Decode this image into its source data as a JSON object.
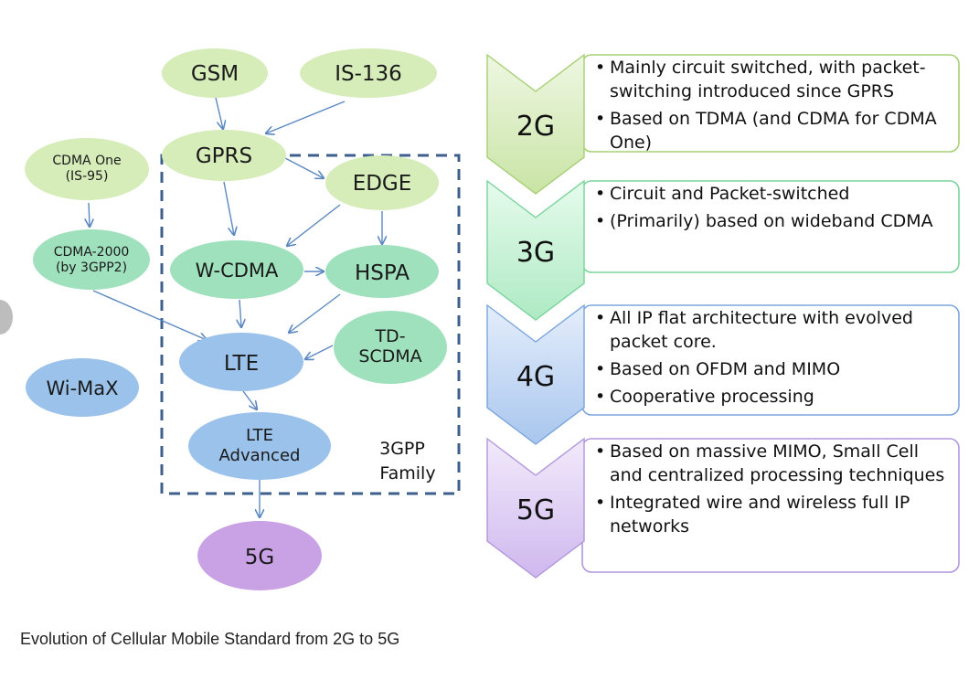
{
  "nodes": {
    "gsm": {
      "label": "GSM"
    },
    "is136": {
      "label": "IS-136"
    },
    "cdma_one": {
      "label_lines": [
        "CDMA One",
        "(IS-95)"
      ]
    },
    "gprs": {
      "label": "GPRS"
    },
    "edge": {
      "label": "EDGE"
    },
    "cdma2000": {
      "label_lines": [
        "CDMA-2000",
        "(by 3GPP2)"
      ]
    },
    "wcdma": {
      "label": "W-CDMA"
    },
    "hspa": {
      "label": "HSPA"
    },
    "td_scdma": {
      "label_lines": [
        "TD-",
        "SCDMA"
      ]
    },
    "lte": {
      "label": "LTE"
    },
    "wimax": {
      "label": "Wi-MaX"
    },
    "lte_advanced": {
      "label_lines": [
        "LTE",
        "Advanced"
      ]
    },
    "five_g": {
      "label": "5G"
    }
  },
  "family_label_lines": [
    "3GPP",
    "Family"
  ],
  "colors": {
    "light_green": "#d6ecb9",
    "teal_green": "#9fe0bd",
    "blue": "#9bc2ea",
    "purple": "#c9a2e6",
    "arrow": "#5b88c0",
    "dash_box": "#3c5f8d"
  },
  "generations": [
    {
      "label": "2G",
      "color": "#d3eab7",
      "border": "#a6cf73",
      "bullets": [
        [
          "Mainly circuit switched, with packet-",
          "switching introduced since GPRS"
        ],
        [
          "Based on TDMA (and CDMA for CDMA",
          "One)"
        ]
      ]
    },
    {
      "label": "3G",
      "color": "#bff0cf",
      "border": "#79d39a",
      "bullets": [
        [
          "Circuit and Packet-switched"
        ],
        [
          "(Primarily) based on wideband CDMA"
        ]
      ]
    },
    {
      "label": "4G",
      "color": "#bcd4f1",
      "border": "#7aa5dc",
      "bullets": [
        [
          "All IP flat architecture with evolved",
          "packet core."
        ],
        [
          "Based on OFDM and MIMO"
        ],
        [
          "Cooperative processing"
        ]
      ]
    },
    {
      "label": "5G",
      "color": "#dccaf1",
      "border": "#b196dc",
      "bullets": [
        [
          "Based on massive MIMO, Small Cell",
          "and centralized processing techniques"
        ],
        [
          "Integrated wire and wireless full IP",
          "networks"
        ]
      ]
    }
  ],
  "caption": "Evolution of Cellular Mobile Standard from 2G to 5G"
}
